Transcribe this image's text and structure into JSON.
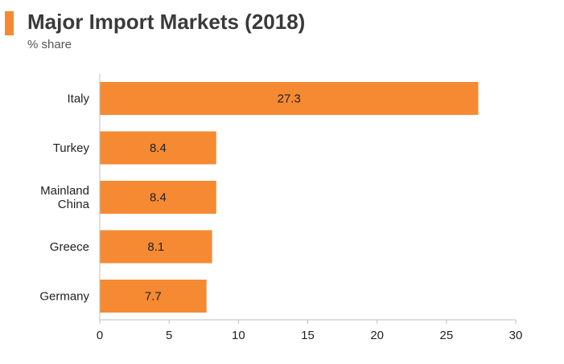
{
  "header": {
    "title": "Major Import Markets (2018)",
    "subtitle": "% share",
    "accent_color": "#f58a33"
  },
  "chart_data": {
    "type": "bar",
    "orientation": "horizontal",
    "title": "Major Import Markets (2018)",
    "subtitle": "% share",
    "xlabel": "",
    "ylabel": "",
    "categories": [
      [
        "Italy"
      ],
      [
        "Turkey"
      ],
      [
        "Mainland",
        "China"
      ],
      [
        "Greece"
      ],
      [
        "Germany"
      ]
    ],
    "values": [
      27.3,
      8.4,
      8.4,
      8.1,
      7.7
    ],
    "data_labels": [
      "27.3",
      "8.4",
      "8.4",
      "8.1",
      "7.7"
    ],
    "xlim": [
      0,
      30
    ],
    "xticks": [
      0,
      5,
      10,
      15,
      20,
      25,
      30
    ],
    "bar_color": "#f58a33",
    "grid": false,
    "legend": "none"
  }
}
